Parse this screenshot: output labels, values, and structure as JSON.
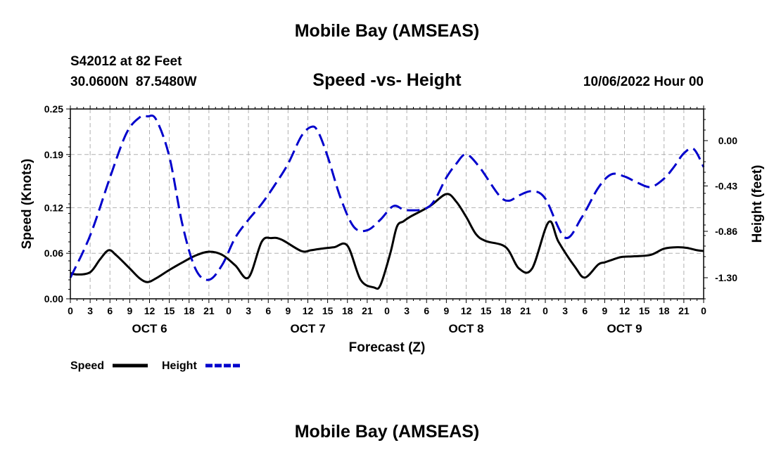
{
  "header": {
    "title": "Mobile Bay (AMSEAS)",
    "station": "S42012 at 82 Feet",
    "coords": "30.0600N  87.5480W",
    "chart_title": "Speed -vs- Height",
    "run_time": "10/06/2022 Hour 00",
    "bottom_title": "Mobile Bay (AMSEAS)"
  },
  "chart_data": {
    "type": "line",
    "title": "Speed -vs- Height",
    "xlabel": "Forecast (Z)",
    "ylabel": "Speed (Knots)",
    "y2label": "Height (feet)",
    "x_range_hours": [
      0,
      96
    ],
    "x_tick_labels": [
      "0",
      "3",
      "6",
      "9",
      "12",
      "15",
      "18",
      "21",
      "0",
      "3",
      "6",
      "9",
      "12",
      "15",
      "18",
      "21",
      "0",
      "3",
      "6",
      "9",
      "12",
      "15",
      "18",
      "21",
      "0",
      "3",
      "6",
      "9",
      "12",
      "15",
      "18",
      "21",
      "0"
    ],
    "day_labels": [
      "OCT 6",
      "OCT 7",
      "OCT 8",
      "OCT 9"
    ],
    "ylim": [
      0,
      0.25
    ],
    "y_ticks": [
      0.0,
      0.06,
      0.12,
      0.19,
      0.25
    ],
    "y_tick_labels": [
      "0.00",
      "0.06",
      "0.12",
      "0.19",
      "0.25"
    ],
    "y2lim": [
      -1.5,
      0.3
    ],
    "y2_ticks": [
      -1.3,
      -0.86,
      -0.43,
      0.0
    ],
    "y2_tick_labels": [
      "-1.30",
      "-0.86",
      "-0.43",
      "0.00"
    ],
    "grid": true,
    "legend_position": "bottom-left",
    "series": [
      {
        "name": "Speed",
        "color": "#000000",
        "style": "solid",
        "axis": "left",
        "x": [
          0,
          1,
          3,
          4.5,
          5.8,
          7,
          9,
          10.5,
          11.7,
          13,
          15,
          17,
          19,
          21,
          23,
          25,
          27,
          29,
          30.5,
          32,
          35,
          36.5,
          38,
          40,
          42,
          44,
          46,
          47,
          48.5,
          49.5,
          50.5,
          51.5,
          54.5,
          57,
          58.5,
          60,
          61.5,
          63,
          66,
          68,
          70,
          72.5,
          74,
          76.5,
          78,
          80,
          81,
          82,
          83.5,
          85.5,
          88,
          90,
          92,
          93.5,
          95,
          96
        ],
        "y": [
          0.034,
          0.032,
          0.035,
          0.052,
          0.064,
          0.057,
          0.04,
          0.027,
          0.022,
          0.027,
          0.038,
          0.048,
          0.057,
          0.062,
          0.058,
          0.044,
          0.028,
          0.075,
          0.08,
          0.078,
          0.063,
          0.064,
          0.066,
          0.068,
          0.07,
          0.025,
          0.015,
          0.018,
          0.06,
          0.095,
          0.102,
          0.108,
          0.122,
          0.138,
          0.128,
          0.108,
          0.085,
          0.076,
          0.068,
          0.04,
          0.04,
          0.101,
          0.075,
          0.042,
          0.028,
          0.045,
          0.048,
          0.051,
          0.055,
          0.056,
          0.058,
          0.066,
          0.068,
          0.067,
          0.064,
          0.063
        ],
        "line_data": true
      },
      {
        "name": "Height",
        "color": "#0000cc",
        "style": "dashed",
        "axis": "right",
        "x": [
          0,
          3,
          6,
          8.5,
          10.5,
          11.7,
          13,
          15,
          17,
          19,
          21,
          23,
          25,
          27,
          29,
          31,
          33,
          35,
          36.5,
          37.5,
          39,
          41,
          43,
          45,
          47,
          49,
          51,
          54.5,
          57,
          58.5,
          60,
          62,
          65,
          66.5,
          68,
          70,
          72,
          75,
          77.5,
          80,
          82,
          84,
          86,
          88,
          90,
          91.5,
          93,
          94.5,
          96
        ],
        "y": [
          -1.3,
          -0.9,
          -0.35,
          0.07,
          0.22,
          0.23,
          0.2,
          -0.15,
          -0.8,
          -1.22,
          -1.32,
          -1.18,
          -0.92,
          -0.75,
          -0.6,
          -0.42,
          -0.22,
          0.04,
          0.13,
          0.09,
          -0.15,
          -0.55,
          -0.82,
          -0.85,
          -0.75,
          -0.62,
          -0.66,
          -0.62,
          -0.35,
          -0.22,
          -0.13,
          -0.25,
          -0.52,
          -0.57,
          -0.52,
          -0.48,
          -0.55,
          -0.92,
          -0.73,
          -0.45,
          -0.32,
          -0.34,
          -0.4,
          -0.44,
          -0.36,
          -0.25,
          -0.12,
          -0.08,
          -0.25
        ],
        "line_data": true
      }
    ]
  }
}
